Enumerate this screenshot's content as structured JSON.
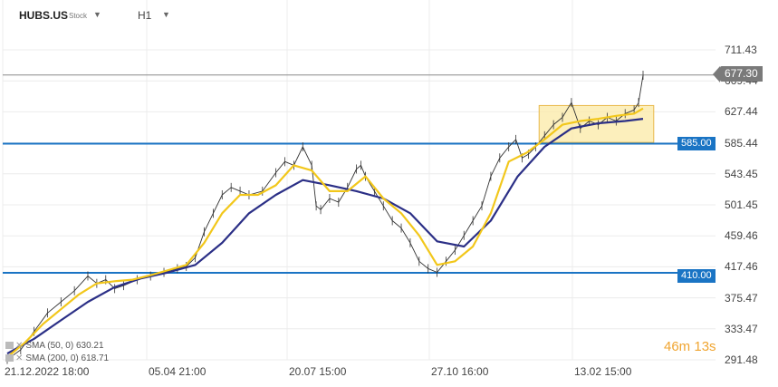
{
  "header": {
    "symbol": "HUBS.US",
    "type": "Stock",
    "timeframe": "H1"
  },
  "badges": {
    "price": "677.30",
    "level_upper": "585.00",
    "level_lower": "410.00"
  },
  "legend": {
    "sma1": "SMA (50, 0) 630.21",
    "sma2": "SMA (200, 0) 618.71"
  },
  "timer": {
    "value": "46m 13s"
  },
  "colors": {
    "level_line": "#1a74c4",
    "sma_fast": "#f2c71b",
    "sma_slow": "#2b2f86",
    "price": "#333333",
    "box_fill": "#fbe9a6",
    "box_stroke": "#e8b84a"
  },
  "chart_data": {
    "type": "line",
    "y_ticks": [
      "711.43",
      "669.44",
      "627.44",
      "585.44",
      "543.45",
      "501.45",
      "459.46",
      "417.46",
      "375.47",
      "333.47",
      "291.48"
    ],
    "x_ticks": [
      "21.12.2022  18:00",
      "05.04  21:00",
      "20.07  15:00",
      "27.10  16:00",
      "13.02  15:00"
    ],
    "ylim": [
      291.48,
      711.43
    ],
    "x_range": [
      0,
      710
    ],
    "price_line": 677.3,
    "horizontal_levels": [
      585.0,
      410.0
    ],
    "range_box": {
      "x": [
        600,
        728
      ],
      "y": [
        586,
        636
      ]
    },
    "series": [
      {
        "kind": "price",
        "x": [
          0,
          15,
          30,
          45,
          60,
          75,
          90,
          100,
          110,
          120,
          130,
          145,
          160,
          175,
          190,
          200,
          210,
          220,
          230,
          240,
          250,
          260,
          270,
          285,
          300,
          310,
          320,
          330,
          340,
          345,
          350,
          360,
          370,
          380,
          390,
          395,
          400,
          410,
          420,
          430,
          440,
          450,
          460,
          470,
          480,
          490,
          500,
          510,
          520,
          530,
          540,
          550,
          560,
          568,
          575,
          582,
          590,
          600,
          610,
          620,
          630,
          640,
          650,
          660,
          670,
          680,
          690,
          700,
          705,
          710
        ],
        "values": [
          292,
          305,
          330,
          355,
          370,
          385,
          405,
          395,
          400,
          388,
          392,
          400,
          405,
          410,
          415,
          418,
          430,
          465,
          490,
          515,
          525,
          520,
          515,
          520,
          545,
          560,
          555,
          580,
          555,
          500,
          495,
          510,
          505,
          525,
          550,
          555,
          540,
          520,
          500,
          480,
          470,
          450,
          425,
          415,
          410,
          425,
          440,
          460,
          480,
          500,
          540,
          565,
          580,
          590,
          565,
          570,
          580,
          595,
          610,
          620,
          640,
          605,
          615,
          610,
          620,
          615,
          625,
          630,
          640,
          677
        ]
      },
      {
        "kind": "sma-fast",
        "x": [
          0,
          20,
          40,
          60,
          80,
          100,
          120,
          140,
          160,
          180,
          200,
          220,
          240,
          260,
          280,
          300,
          320,
          340,
          360,
          380,
          400,
          420,
          440,
          460,
          480,
          500,
          520,
          540,
          560,
          580,
          600,
          620,
          640,
          660,
          680,
          700,
          710
        ],
        "values": [
          295,
          315,
          340,
          360,
          380,
          395,
          398,
          400,
          406,
          413,
          420,
          450,
          490,
          515,
          515,
          528,
          555,
          548,
          520,
          520,
          540,
          510,
          490,
          460,
          420,
          425,
          445,
          490,
          560,
          572,
          590,
          610,
          615,
          618,
          622,
          625,
          632
        ]
      },
      {
        "kind": "sma-slow",
        "x": [
          0,
          30,
          60,
          90,
          120,
          150,
          180,
          210,
          240,
          270,
          300,
          330,
          360,
          390,
          420,
          450,
          480,
          510,
          540,
          570,
          600,
          630,
          660,
          690,
          710
        ],
        "values": [
          300,
          320,
          345,
          370,
          390,
          402,
          410,
          420,
          450,
          490,
          515,
          535,
          528,
          520,
          510,
          490,
          452,
          445,
          480,
          540,
          580,
          605,
          612,
          615,
          618
        ]
      }
    ]
  }
}
